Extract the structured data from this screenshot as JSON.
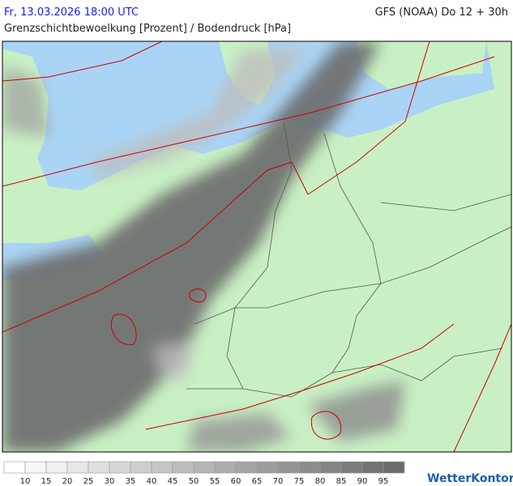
{
  "header": {
    "datetime": "Fr, 13.03.2026 18:00 UTC",
    "model": "GFS (NOAA) Do 12 + 30h",
    "subtitle": "Grenzschichtbewoelkung [Prozent] / Bodendruck [hPa]"
  },
  "legend": {
    "labels": [
      10,
      15,
      20,
      25,
      30,
      35,
      40,
      45,
      50,
      55,
      60,
      65,
      70,
      75,
      80,
      85,
      90,
      95
    ],
    "colors": [
      "#ffffff",
      "#f7f7f7",
      "#efefef",
      "#e7e7e7",
      "#dfdfdf",
      "#d6d6d6",
      "#cecece",
      "#c6c6c6",
      "#bdbdbd",
      "#b5b5b5",
      "#adadad",
      "#a5a5a5",
      "#9c9c9c",
      "#949494",
      "#8c8c8c",
      "#848484",
      "#7b7b7b",
      "#737373",
      "#6b6b6b"
    ]
  },
  "brand": "WetterKontor"
}
